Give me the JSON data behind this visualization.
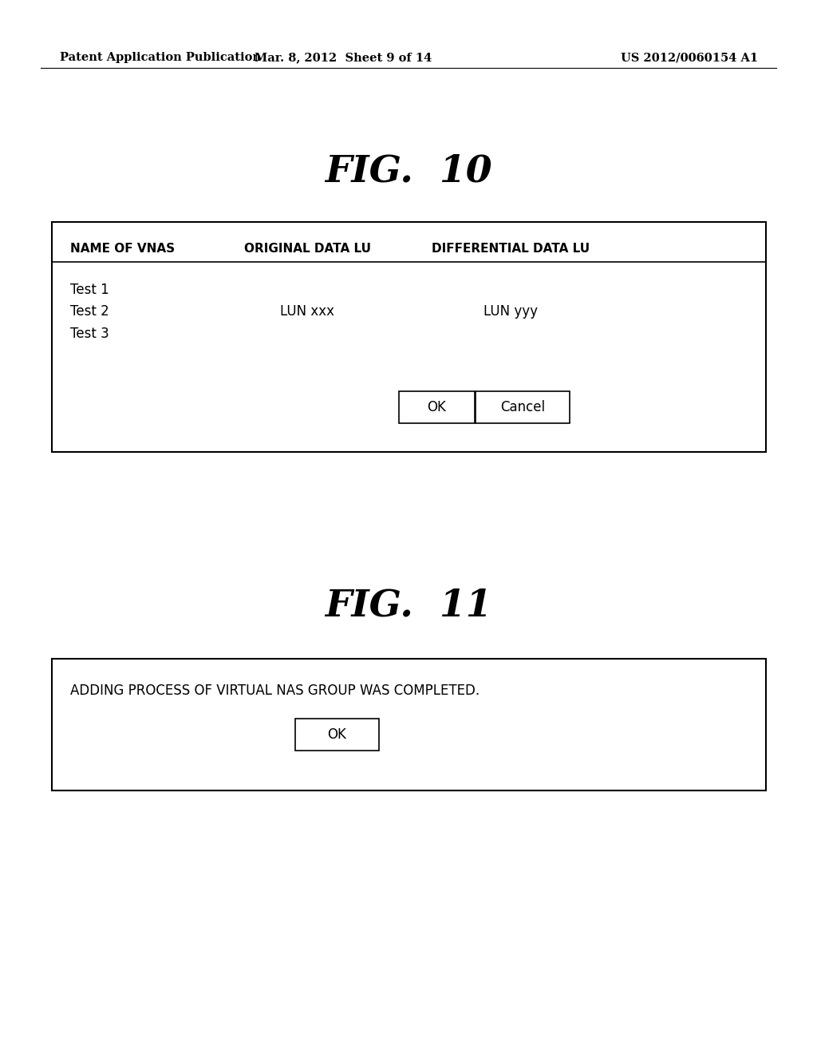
{
  "background_color": "#ffffff",
  "header_text_left": "Patent Application Publication",
  "header_text_mid": "Mar. 8, 2012  Sheet 9 of 14",
  "header_text_right": "US 2012/0060154 A1",
  "header_font_size": 10.5,
  "fig10_title": "FIG.  10",
  "fig10_title_fontsize": 34,
  "fig11_title": "FIG.  11",
  "fig11_title_fontsize": 34,
  "fig10_col1_header": "NAME OF VNAS",
  "fig10_col2_header": "ORIGINAL DATA LU",
  "fig10_col3_header": "DIFFERENTIAL DATA LU",
  "fig10_test1": "Test 1",
  "fig10_test2": "Test 2",
  "fig10_test3": "Test 3",
  "fig10_lun_xxx": "LUN xxx",
  "fig10_lun_yyy": "LUN yyy",
  "fig11_msg": "ADDING PROCESS OF VIRTUAL NAS GROUP WAS COMPLETED.",
  "data_font_size": 12,
  "header_col_font_size": 11
}
